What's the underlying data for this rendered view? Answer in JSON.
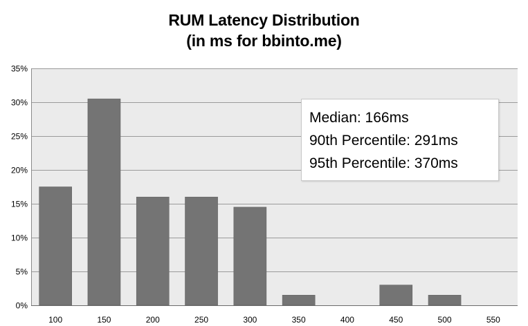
{
  "chart_data": {
    "type": "bar",
    "title": "RUM Latency Distribution",
    "subtitle": "(in ms for bbinto.me)",
    "xlabel": "",
    "ylabel": "",
    "categories": [
      "100",
      "150",
      "200",
      "250",
      "300",
      "350",
      "400",
      "450",
      "500",
      "550"
    ],
    "values": [
      0.175,
      0.305,
      0.16,
      0.16,
      0.145,
      0.015,
      0,
      0.03,
      0.015,
      0
    ],
    "ylim": [
      0,
      0.35
    ],
    "yticks": [
      0,
      0.05,
      0.1,
      0.15,
      0.2,
      0.25,
      0.3,
      0.35
    ],
    "ytick_labels": [
      "0%",
      "5%",
      "10%",
      "15%",
      "20%",
      "25%",
      "30%",
      "35%"
    ],
    "grid": true,
    "legend": "none",
    "bar_color": "#747474",
    "plot_background": "#ebebeb",
    "annotations": [
      "Median: 166ms",
      "90th Percentile: 291ms",
      "95th Percentile: 370ms"
    ]
  }
}
